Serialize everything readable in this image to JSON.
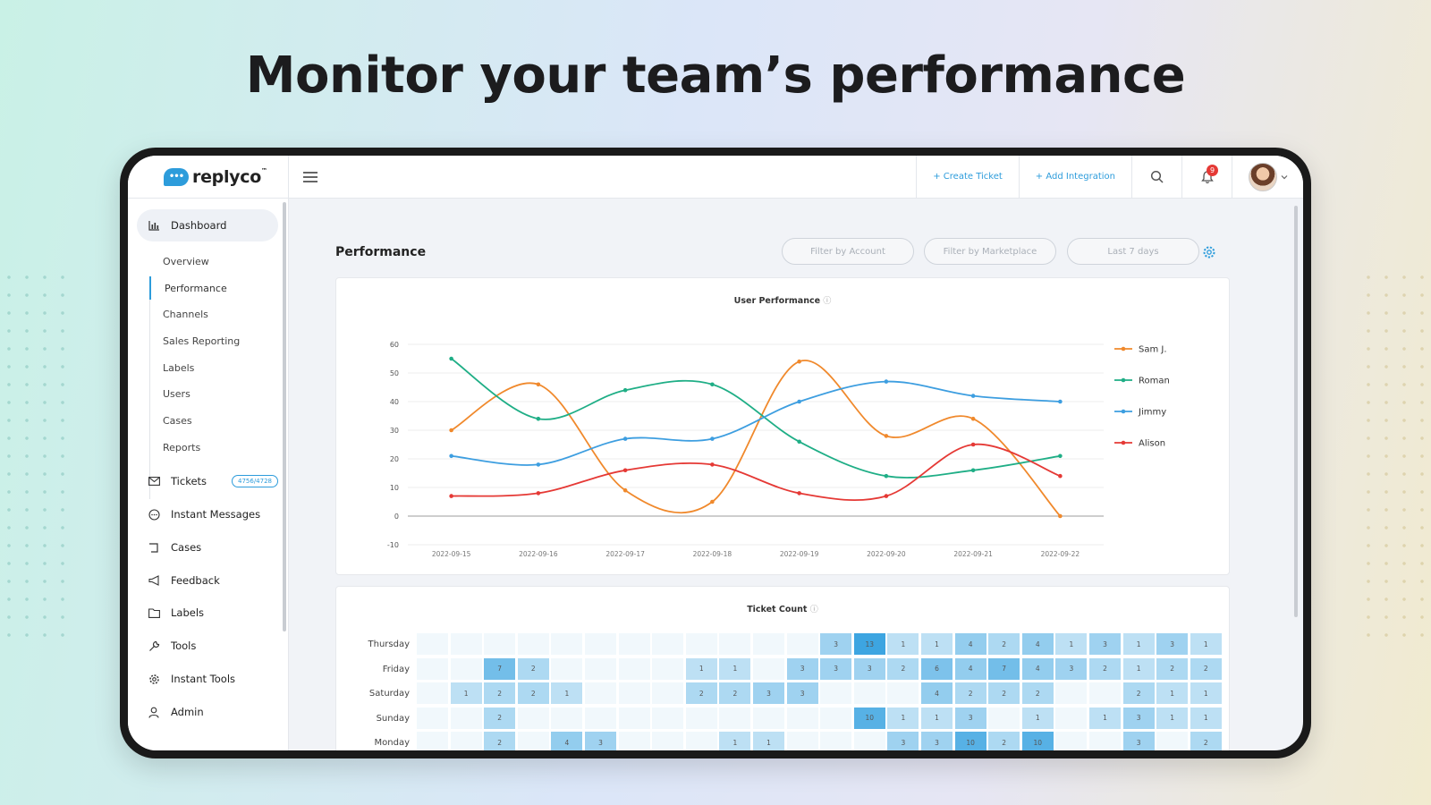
{
  "headline": "Monitor your team’s performance",
  "brand": {
    "name": "replyco",
    "logo_text": "•••",
    "tm": "™"
  },
  "topbar": {
    "create_ticket": "+ Create Ticket",
    "add_integration": "+ Add Integration",
    "notification_count": "9"
  },
  "sidebar": {
    "dashboard": "Dashboard",
    "sub_items": [
      "Overview",
      "Performance",
      "Channels",
      "Sales Reporting",
      "Labels",
      "Users",
      "Cases",
      "Reports"
    ],
    "items": [
      {
        "label": "Tickets",
        "icon": "mail-icon"
      },
      {
        "label": "Instant Messages",
        "icon": "chat-icon"
      },
      {
        "label": "Cases",
        "icon": "case-icon"
      },
      {
        "label": "Feedback",
        "icon": "megaphone-icon"
      },
      {
        "label": "Labels",
        "icon": "folder-icon"
      },
      {
        "label": "Tools",
        "icon": "wrench-icon"
      },
      {
        "label": "Instant Tools",
        "icon": "gear-icon"
      },
      {
        "label": "Admin",
        "icon": "user-icon"
      }
    ],
    "tickets_badge": "4756/4728"
  },
  "main": {
    "title": "Performance",
    "filters": [
      "Filter by Account",
      "Filter by Marketplace",
      "Last 7 days"
    ],
    "line_card_title": "User Performance",
    "heatmap_card_title": "Ticket Count",
    "info_glyph": "ⓘ"
  },
  "chart_data": [
    {
      "type": "line",
      "title": "User Performance",
      "x": [
        "2022-09-15",
        "2022-09-16",
        "2022-09-17",
        "2022-09-18",
        "2022-09-19",
        "2022-09-20",
        "2022-09-21",
        "2022-09-22"
      ],
      "ylim": [
        -10,
        60
      ],
      "yticks": [
        60,
        50,
        40,
        30,
        20,
        10,
        0,
        -10
      ],
      "legend_position": "right",
      "series": [
        {
          "name": "Sam J.",
          "color": "#f0892c",
          "values": [
            30,
            46,
            9,
            5,
            54,
            28,
            34,
            0
          ]
        },
        {
          "name": "Roman",
          "color": "#1fae86",
          "values": [
            55,
            34,
            44,
            46,
            26,
            14,
            16,
            21
          ]
        },
        {
          "name": "Jimmy",
          "color": "#3d9ee0",
          "values": [
            21,
            18,
            27,
            27,
            40,
            47,
            42,
            40
          ]
        },
        {
          "name": "Alison",
          "color": "#e53935",
          "values": [
            7,
            8,
            16,
            18,
            8,
            7,
            25,
            14
          ]
        }
      ]
    },
    {
      "type": "heatmap",
      "title": "Ticket Count",
      "rows": [
        "Thursday",
        "Friday",
        "Saturday",
        "Sunday",
        "Monday"
      ],
      "columns": 24,
      "values": [
        [
          0,
          0,
          0,
          0,
          0,
          0,
          0,
          0,
          0,
          0,
          0,
          0,
          3,
          13,
          1,
          1,
          4,
          2,
          4,
          1,
          3,
          1,
          3,
          1
        ],
        [
          0,
          0,
          7,
          2,
          0,
          0,
          0,
          0,
          1,
          1,
          0,
          3,
          3,
          3,
          2,
          6,
          4,
          7,
          4,
          3,
          2,
          1,
          2,
          2
        ],
        [
          0,
          1,
          2,
          2,
          1,
          0,
          0,
          0,
          2,
          2,
          3,
          3,
          0,
          0,
          0,
          4,
          2,
          2,
          2,
          0,
          0,
          2,
          1,
          1
        ],
        [
          0,
          0,
          2,
          0,
          0,
          0,
          0,
          0,
          0,
          0,
          0,
          0,
          0,
          10,
          1,
          1,
          3,
          0,
          1,
          0,
          1,
          3,
          1,
          1
        ],
        [
          0,
          0,
          2,
          0,
          4,
          3,
          0,
          0,
          0,
          1,
          1,
          0,
          0,
          0,
          3,
          3,
          10,
          2,
          10,
          0,
          0,
          3,
          0,
          2
        ]
      ]
    }
  ]
}
